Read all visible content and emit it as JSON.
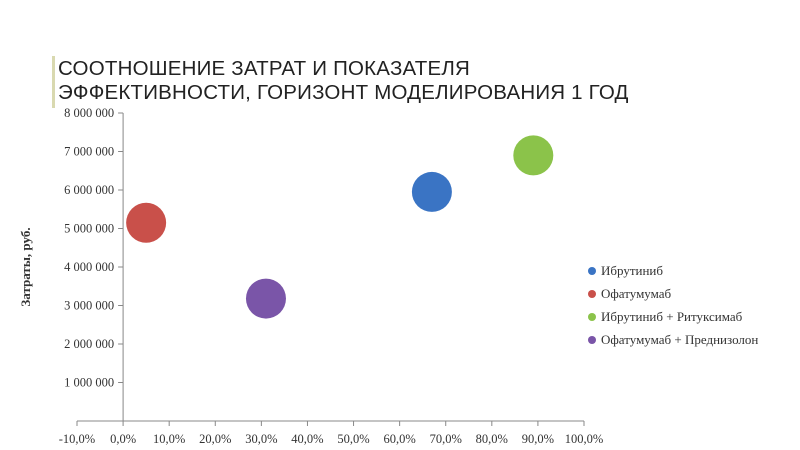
{
  "page": {
    "title_line1": "СООТНОШЕНИЕ ЗАТРАТ И ПОКАЗАТЕЛЯ",
    "title_line2": "ЭФФЕКТИВНОСТИ, ГОРИЗОНТ МОДЕЛИРОВАНИЯ 1 ГОД",
    "accent_color": "#d9d9b0"
  },
  "chart_data": {
    "type": "scatter",
    "title": "",
    "xlabel": "",
    "ylabel": "Затраты, руб.",
    "xlim": [
      -10,
      100
    ],
    "ylim": [
      0,
      8000000
    ],
    "x_ticks": [
      -10,
      0,
      10,
      20,
      30,
      40,
      50,
      60,
      70,
      80,
      90,
      100
    ],
    "x_tick_labels": [
      "-10,0%",
      "0,0%",
      "10,0%",
      "20,0%",
      "30,0%",
      "40,0%",
      "50,0%",
      "60,0%",
      "70,0%",
      "80,0%",
      "90,0%",
      "100,0%"
    ],
    "y_ticks": [
      0,
      1000000,
      2000000,
      3000000,
      4000000,
      5000000,
      6000000,
      7000000,
      8000000
    ],
    "y_tick_labels": [
      "",
      "1 000 000",
      "2 000 000",
      "3 000 000",
      "4 000 000",
      "5 000 000",
      "6 000 000",
      "7 000 000",
      "8 000 000"
    ],
    "grid": false,
    "legend_position": "right",
    "series": [
      {
        "name": "Ибрутиниб",
        "color": "#3a74c4",
        "x": 67,
        "y": 5950000
      },
      {
        "name": "Офатумумаб",
        "color": "#c9504a",
        "x": 5,
        "y": 5150000
      },
      {
        "name": "Ибрутиниб + Ритуксимаб",
        "color": "#8bc34a",
        "x": 89,
        "y": 6900000
      },
      {
        "name": "Офатумумаб + Преднизолон",
        "color": "#7a55a8",
        "x": 31,
        "y": 3180000
      }
    ]
  }
}
